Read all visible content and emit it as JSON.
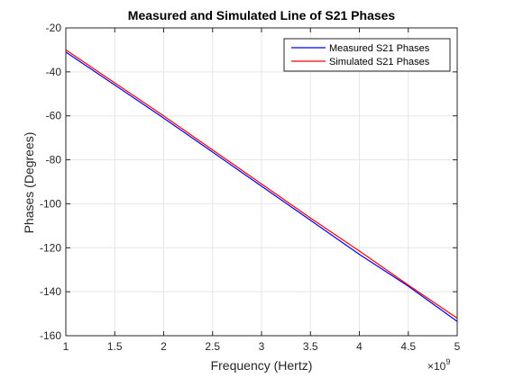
{
  "chart_data": {
    "type": "line",
    "title": "Measured and Simulated Line of S21 Phases",
    "xlabel": "Frequency (Hertz)",
    "ylabel": "Phases (Degrees)",
    "x_exponent_label": "×10",
    "x_exponent_power": "9",
    "xlim": [
      1,
      5
    ],
    "ylim": [
      -160,
      -20
    ],
    "xticks": [
      "1",
      "1.5",
      "2",
      "2.5",
      "3",
      "3.5",
      "4",
      "4.5",
      "5"
    ],
    "yticks": [
      "-20",
      "-40",
      "-60",
      "-80",
      "-100",
      "-120",
      "-140",
      "-160"
    ],
    "grid": true,
    "legend_position": "top-right",
    "series": [
      {
        "name": "Measured S21 Phases",
        "color": "#0000ff",
        "x": [
          1,
          1.5,
          2,
          2.5,
          3,
          3.5,
          4,
          4.5,
          5
        ],
        "y": [
          -31,
          -46,
          -61,
          -76.5,
          -92,
          -107.5,
          -123,
          -137.5,
          -153.5
        ]
      },
      {
        "name": "Simulated S21 Phases",
        "color": "#ff0000",
        "x": [
          1,
          1.5,
          2,
          2.5,
          3,
          3.5,
          4,
          4.5,
          5
        ],
        "y": [
          -30,
          -45,
          -60,
          -75.5,
          -91,
          -106.5,
          -121.5,
          -137,
          -152
        ]
      }
    ]
  }
}
